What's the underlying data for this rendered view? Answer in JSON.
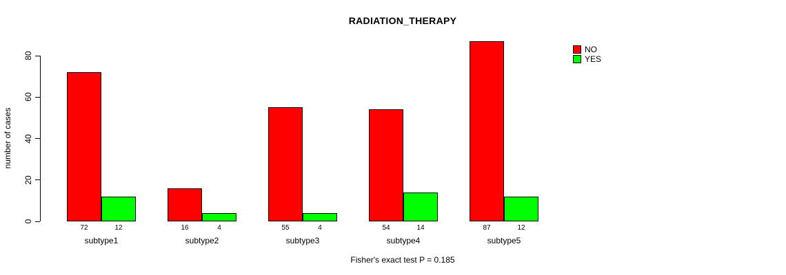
{
  "chart_data": {
    "type": "bar",
    "title": "RADIATION_THERAPY",
    "ylabel": "number of cases",
    "xlabel": "",
    "annotation": "Fisher's exact test P = 0.185",
    "categories": [
      "subtype1",
      "subtype2",
      "subtype3",
      "subtype4",
      "subtype5"
    ],
    "series": [
      {
        "name": "NO",
        "color": "#ff0000",
        "values": [
          72,
          16,
          55,
          54,
          87
        ]
      },
      {
        "name": "YES",
        "color": "#00ff00",
        "values": [
          12,
          4,
          4,
          14,
          12
        ]
      }
    ],
    "yticks": [
      0,
      20,
      40,
      60,
      80
    ],
    "ylim": [
      0,
      87
    ],
    "grid": false,
    "legend_position": "top-right",
    "value_labels_shown": true
  },
  "colors": {
    "background": "#ffffff",
    "axis": "#000000",
    "text": "#000000"
  }
}
